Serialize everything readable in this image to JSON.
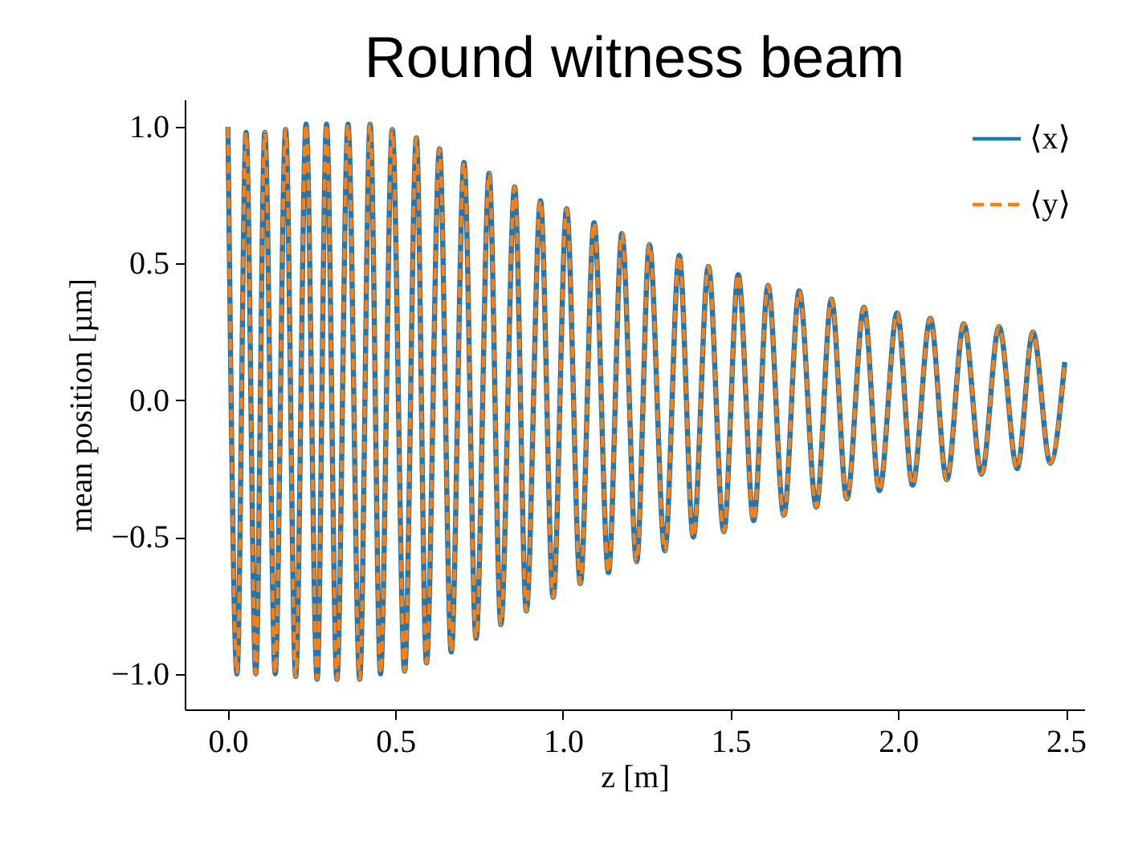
{
  "chart_data": {
    "type": "line",
    "title": "Round witness beam",
    "xlabel": "z [m]",
    "ylabel": "mean position [µm]",
    "x": [
      0.001,
      0.028,
      0.055,
      0.084,
      0.111,
      0.142,
      0.173,
      0.203,
      0.234,
      0.267,
      0.295,
      0.326,
      0.359,
      0.394,
      0.425,
      0.456,
      0.491,
      0.528,
      0.563,
      0.593,
      0.632,
      0.667,
      0.705,
      0.741,
      0.78,
      0.815,
      0.856,
      0.891,
      0.933,
      0.971,
      1.011,
      1.052,
      1.093,
      1.136,
      1.176,
      1.22,
      1.258,
      1.304,
      1.347,
      1.389,
      1.434,
      1.48,
      1.523,
      1.569,
      1.612,
      1.659,
      1.705,
      1.756,
      1.801,
      1.847,
      1.898,
      1.944,
      1.997,
      2.043,
      2.096,
      2.145,
      2.196,
      2.249,
      2.301,
      2.355,
      2.402,
      2.454,
      2.497
    ],
    "series": [
      {
        "name": "⟨x⟩",
        "color": "#1f77b4",
        "line_style": "solid",
        "values": [
          1.0,
          -1.0,
          0.98,
          -1.0,
          0.98,
          -1.0,
          0.99,
          -1.01,
          1.01,
          -1.02,
          1.01,
          -1.02,
          1.01,
          -1.02,
          1.01,
          -1.0,
          0.99,
          -0.99,
          0.96,
          -0.96,
          0.92,
          -0.92,
          0.87,
          -0.87,
          0.83,
          -0.82,
          0.78,
          -0.77,
          0.73,
          -0.72,
          0.7,
          -0.67,
          0.65,
          -0.63,
          0.61,
          -0.59,
          0.57,
          -0.55,
          0.53,
          -0.5,
          0.49,
          -0.48,
          0.46,
          -0.44,
          0.42,
          -0.42,
          0.4,
          -0.39,
          0.37,
          -0.36,
          0.34,
          -0.33,
          0.32,
          -0.31,
          0.3,
          -0.29,
          0.28,
          -0.27,
          0.27,
          -0.25,
          0.25,
          -0.23,
          0.14
        ]
      },
      {
        "name": "⟨y⟩",
        "color": "#ff7f0e",
        "line_style": "dashed",
        "values": [
          1.0,
          -1.0,
          0.98,
          -1.0,
          0.98,
          -1.0,
          0.99,
          -1.01,
          1.01,
          -1.02,
          1.01,
          -1.02,
          1.01,
          -1.02,
          1.01,
          -1.0,
          0.99,
          -0.99,
          0.96,
          -0.96,
          0.92,
          -0.92,
          0.87,
          -0.87,
          0.83,
          -0.82,
          0.78,
          -0.77,
          0.73,
          -0.72,
          0.7,
          -0.67,
          0.65,
          -0.63,
          0.61,
          -0.59,
          0.57,
          -0.55,
          0.53,
          -0.5,
          0.49,
          -0.48,
          0.46,
          -0.44,
          0.42,
          -0.42,
          0.4,
          -0.39,
          0.37,
          -0.36,
          0.34,
          -0.33,
          0.32,
          -0.31,
          0.3,
          -0.29,
          0.28,
          -0.27,
          0.27,
          -0.25,
          0.25,
          -0.23,
          0.14
        ]
      }
    ],
    "xlim": [
      -0.128,
      2.555
    ],
    "ylim": [
      -1.13,
      1.1
    ],
    "xticks": [
      {
        "value": 0,
        "label": "0.0"
      },
      {
        "value": 0.5,
        "label": "0.5"
      },
      {
        "value": 1,
        "label": "1.0"
      },
      {
        "value": 1.5,
        "label": "1.5"
      },
      {
        "value": 2,
        "label": "2.0"
      },
      {
        "value": 2.5,
        "label": "2.5"
      }
    ],
    "yticks": [
      {
        "value": -1,
        "label": "−1.0"
      },
      {
        "value": -0.5,
        "label": "−0.5"
      },
      {
        "value": 0,
        "label": "0.0"
      },
      {
        "value": 0.5,
        "label": "0.5"
      },
      {
        "value": 1,
        "label": "1.0"
      }
    ],
    "legend": "top right",
    "marker": "none"
  }
}
